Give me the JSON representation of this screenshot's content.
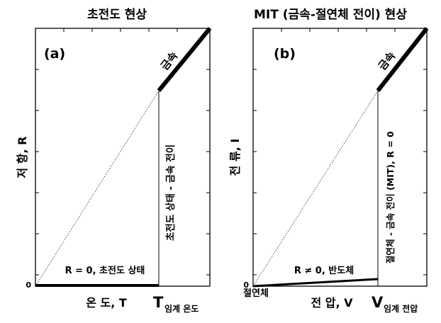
{
  "panel_a": {
    "title": "초전도 현상",
    "tag": "(a)",
    "metal": "금속",
    "zero": "0",
    "y_axis": "저 항, R",
    "x_axis": "온 도, T",
    "x_crit_main": "T",
    "x_crit_sub": "임계 온도",
    "vertical_note": "초전도 상태 - 금속 전이",
    "bottom_note": "R = 0, 초전도 상태"
  },
  "panel_b": {
    "title": "MIT (금속-절연체 전이) 현상",
    "tag": "(b)",
    "metal": "금속",
    "zero": "0",
    "y_axis": "전 류, I",
    "x_axis": "전 압, V",
    "x_crit_main": "V",
    "x_crit_sub": "임계 전압",
    "origin_label": "절연체",
    "vertical_note": "절연체 - 금속 전이 (MIT), R = 0",
    "bottom_note": "R ≠ 0, 반도체"
  },
  "colors": {
    "ink": "#000000",
    "background": "#ffffff"
  }
}
